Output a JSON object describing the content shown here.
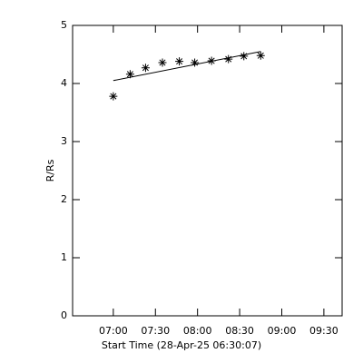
{
  "chart_data": {
    "type": "scatter",
    "xlabel": "Start Time (28-Apr-25 06:30:07)",
    "ylabel": "R/Rs",
    "x": [
      420,
      432,
      443,
      455,
      467,
      478,
      490,
      502,
      513,
      525
    ],
    "series": [
      {
        "marker": "asterisk",
        "color": "#000000",
        "values": [
          3.78,
          4.16,
          4.27,
          4.36,
          4.38,
          4.36,
          4.39,
          4.42,
          4.47,
          4.48
        ]
      }
    ],
    "fit": {
      "type": "line",
      "color": "#000000",
      "x": [
        420,
        525
      ],
      "values": [
        4.05,
        4.55
      ]
    },
    "xlim": [
      391,
      583
    ],
    "ylim": [
      0,
      5
    ],
    "xticks": [
      {
        "value": 420,
        "label": "07:00"
      },
      {
        "value": 450,
        "label": "07:30"
      },
      {
        "value": 480,
        "label": "08:00"
      },
      {
        "value": 510,
        "label": "08:30"
      },
      {
        "value": 540,
        "label": "09:00"
      },
      {
        "value": 570,
        "label": "09:30"
      }
    ],
    "yticks": [
      0,
      1,
      2,
      3,
      4,
      5
    ]
  }
}
